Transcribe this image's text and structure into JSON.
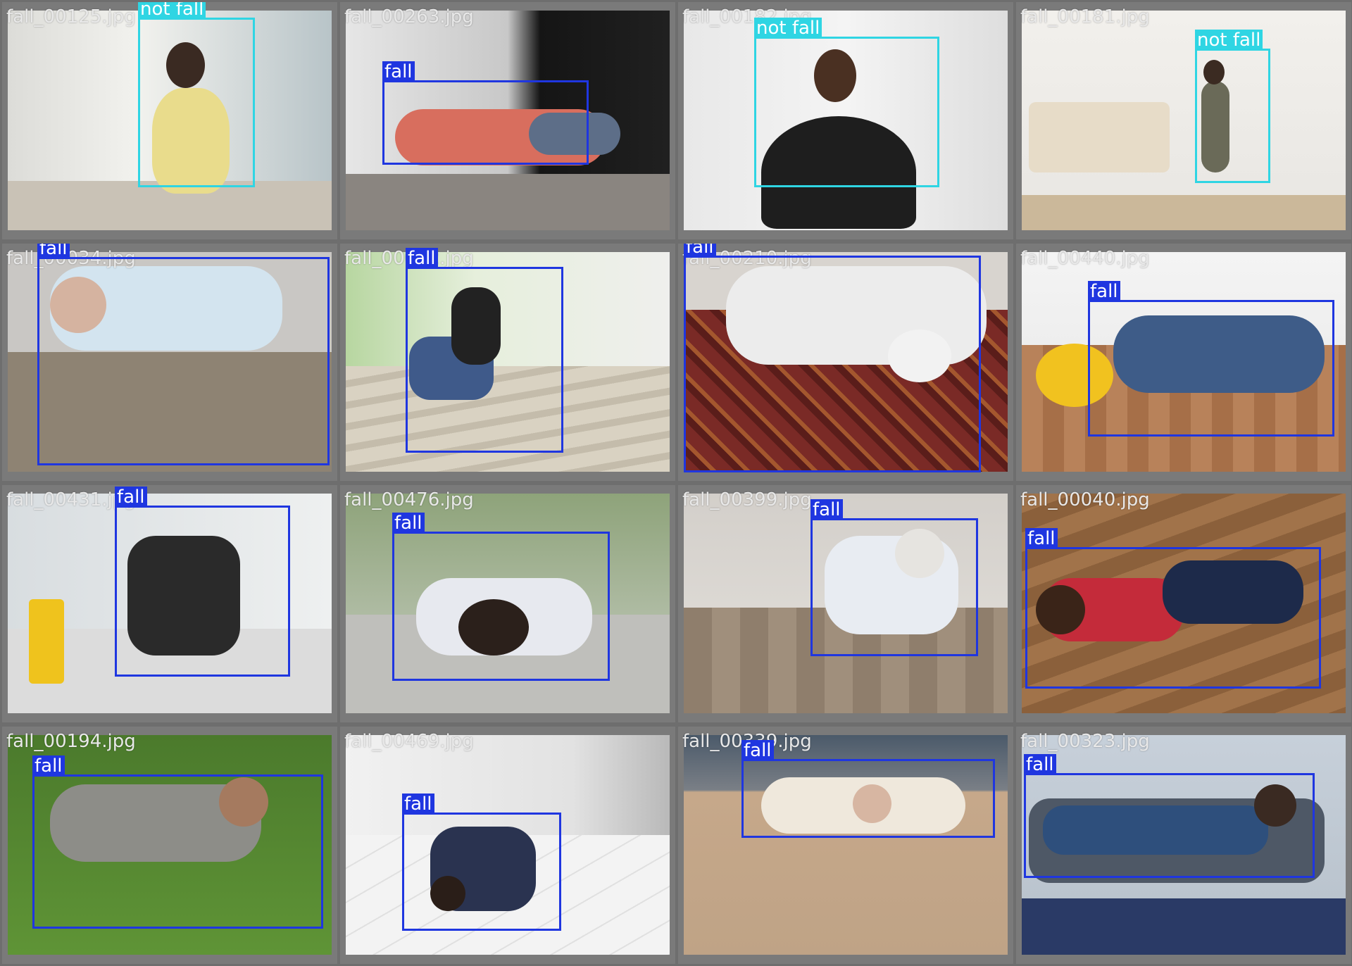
{
  "colors": {
    "fall": "#1f36e0",
    "not_fall": "#2fd5e3",
    "grid_background": "#6e6e6e"
  },
  "tiles": [
    {
      "filename": "fall_00125.jpg",
      "detections": [
        {
          "label": "not fall",
          "cls": "notfall"
        }
      ]
    },
    {
      "filename": "fall_00263.jpg",
      "detections": [
        {
          "label": "fall",
          "cls": "fall"
        }
      ]
    },
    {
      "filename": "fall_00182.jpg",
      "detections": [
        {
          "label": "not fall",
          "cls": "notfall"
        }
      ]
    },
    {
      "filename": "fall_00181.jpg",
      "detections": [
        {
          "label": "not fall",
          "cls": "notfall"
        }
      ]
    },
    {
      "filename": "fall_00034.jpg",
      "detections": [
        {
          "label": "fall",
          "cls": "fall"
        }
      ]
    },
    {
      "filename": "fall_00052.jpg",
      "detections": [
        {
          "label": "fall",
          "cls": "fall"
        }
      ]
    },
    {
      "filename": "fall_00210.jpg",
      "detections": [
        {
          "label": "fall",
          "cls": "fall"
        }
      ]
    },
    {
      "filename": "fall_00440.jpg",
      "detections": [
        {
          "label": "fall",
          "cls": "fall"
        }
      ]
    },
    {
      "filename": "fall_00431.jpg",
      "detections": [
        {
          "label": "fall",
          "cls": "fall"
        }
      ]
    },
    {
      "filename": "fall_00476.jpg",
      "detections": [
        {
          "label": "fall",
          "cls": "fall"
        }
      ]
    },
    {
      "filename": "fall_00399.jpg",
      "detections": [
        {
          "label": "fall",
          "cls": "fall"
        }
      ]
    },
    {
      "filename": "fall_00040.jpg",
      "detections": [
        {
          "label": "fall",
          "cls": "fall"
        }
      ]
    },
    {
      "filename": "fall_00194.jpg",
      "detections": [
        {
          "label": "fall",
          "cls": "fall"
        }
      ]
    },
    {
      "filename": "fall_00469.jpg",
      "detections": [
        {
          "label": "fall",
          "cls": "fall"
        }
      ]
    },
    {
      "filename": "fall_00339.jpg",
      "detections": [
        {
          "label": "fall",
          "cls": "fall"
        }
      ]
    },
    {
      "filename": "fall_00323.jpg",
      "detections": [
        {
          "label": "fall",
          "cls": "fall"
        }
      ]
    }
  ]
}
